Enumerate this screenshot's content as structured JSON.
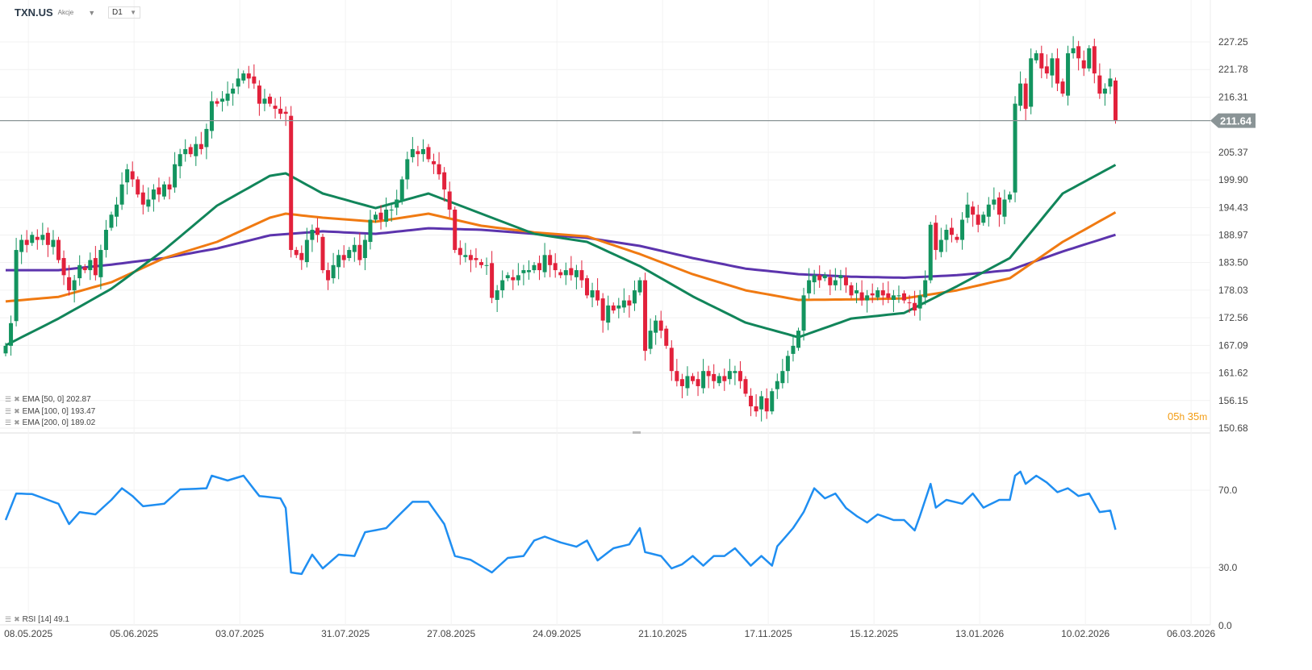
{
  "header": {
    "symbol": "TXN.US",
    "type": "Akcje",
    "timeframe": "D1"
  },
  "timer": {
    "hours": "05",
    "h": "h",
    "minutes": "35",
    "m": "m"
  },
  "legend": [
    {
      "label": "EMA [50, 0] 202.87"
    },
    {
      "label": "EMA [100, 0] 193.47"
    },
    {
      "label": "EMA [200, 0] 189.02"
    }
  ],
  "rsi_legend": "RSI [14] 49.1",
  "colors": {
    "up": "#13945f",
    "down": "#e2213b",
    "ema50": "#11855a",
    "ema100": "#f07a12",
    "ema200": "#5c34ad",
    "rsi": "#1f8ef1",
    "last": "#8a9496"
  },
  "chart_data": [
    {
      "type": "candlestick",
      "title": "TXN.US D1",
      "last_price": 211.64,
      "ylim": [
        150.68,
        227.25
      ],
      "y_ticks": [
        227.25,
        221.78,
        216.31,
        205.37,
        199.9,
        194.43,
        188.97,
        183.5,
        178.03,
        172.56,
        167.09,
        161.62,
        156.15,
        150.68
      ],
      "x_ticks": [
        {
          "label": "08.05.2025",
          "index": 4.3
        },
        {
          "label": "05.06.2025",
          "index": 24.3
        },
        {
          "label": "03.07.2025",
          "index": 44.3
        },
        {
          "label": "31.07.2025",
          "index": 64.3
        },
        {
          "label": "27.08.2025",
          "index": 84.3
        },
        {
          "label": "24.09.2025",
          "index": 104.3
        },
        {
          "label": "21.10.2025",
          "index": 124.3
        },
        {
          "label": "17.11.2025",
          "index": 144.3
        },
        {
          "label": "15.12.2025",
          "index": 164.3
        },
        {
          "label": "13.01.2026",
          "index": 184.3
        },
        {
          "label": "10.02.2026",
          "index": 204.3
        },
        {
          "label": "06.03.2026",
          "index": 224.3
        }
      ],
      "closes": [
        167,
        171.5,
        186,
        188,
        187,
        189,
        188,
        189,
        187,
        188,
        184,
        181,
        178,
        180,
        183,
        182,
        184,
        181,
        186,
        190,
        193,
        195,
        199,
        202,
        200,
        197,
        195,
        196,
        198,
        197,
        199,
        198,
        203,
        205,
        206,
        205,
        207,
        206,
        210,
        215.5,
        215,
        216,
        217,
        218,
        220,
        221,
        220,
        219,
        215,
        216,
        215,
        214,
        213,
        213,
        186,
        185,
        184,
        188,
        190,
        189,
        182,
        180,
        183,
        185,
        184,
        186,
        187,
        184,
        188,
        192,
        193,
        192,
        194,
        194,
        196,
        200,
        204,
        206,
        205,
        206,
        204,
        203,
        201,
        198,
        194,
        186,
        185,
        185,
        184,
        184,
        183,
        183,
        176.5,
        178,
        180,
        181,
        180,
        181,
        182,
        182,
        183,
        182,
        185,
        183,
        182,
        181,
        182,
        181,
        182,
        180,
        177,
        178,
        176,
        172,
        175,
        174,
        175,
        176,
        175,
        178,
        180,
        166,
        170,
        172,
        170,
        167,
        162,
        160,
        159,
        161,
        160,
        159,
        162,
        161,
        160,
        161,
        160,
        162,
        162,
        160,
        157.5,
        155,
        154,
        157,
        154,
        158,
        160,
        162,
        165,
        167,
        170,
        177,
        180,
        181,
        180,
        181,
        179,
        180,
        181,
        179,
        177,
        178,
        176,
        177,
        177,
        178,
        177,
        176.5,
        177,
        177,
        176,
        175.5,
        174,
        177,
        180,
        191,
        186,
        188,
        190,
        189,
        188,
        192,
        195,
        193,
        191,
        193,
        195,
        196,
        193,
        196,
        197,
        215,
        219,
        214,
        224,
        225,
        222,
        221,
        224,
        219,
        217,
        225,
        226,
        224,
        222,
        226,
        221,
        217,
        218,
        220,
        211.64
      ],
      "series": [
        {
          "name": "EMA [50, 0]",
          "value": 202.87,
          "knots": [
            [
              0,
              167.1
            ],
            [
              10,
              172.4
            ],
            [
              20,
              178.3
            ],
            [
              30,
              186
            ],
            [
              40,
              194.8
            ],
            [
              50,
              200.7
            ],
            [
              53,
              201.2
            ],
            [
              60,
              197.2
            ],
            [
              70,
              194.3
            ],
            [
              80,
              197.2
            ],
            [
              90,
              193.2
            ],
            [
              100,
              189.2
            ],
            [
              110,
              187.6
            ],
            [
              120,
              182.8
            ],
            [
              130,
              176.8
            ],
            [
              140,
              171.6
            ],
            [
              150,
              168.7
            ],
            [
              160,
              172.4
            ],
            [
              170,
              173.5
            ],
            [
              180,
              178.8
            ],
            [
              190,
              184.4
            ],
            [
              200,
              197.2
            ],
            [
              210,
              202.87
            ]
          ]
        },
        {
          "name": "EMA [100, 0]",
          "value": 193.47,
          "knots": [
            [
              0,
              175.8
            ],
            [
              10,
              176.7
            ],
            [
              20,
              179.6
            ],
            [
              30,
              184.4
            ],
            [
              40,
              187.6
            ],
            [
              50,
              192.4
            ],
            [
              53,
              193.2
            ],
            [
              60,
              192.4
            ],
            [
              70,
              191.6
            ],
            [
              80,
              193.2
            ],
            [
              90,
              190.8
            ],
            [
              100,
              189.5
            ],
            [
              110,
              188.7
            ],
            [
              120,
              185.2
            ],
            [
              130,
              181.2
            ],
            [
              140,
              178
            ],
            [
              150,
              176.1
            ],
            [
              160,
              176.2
            ],
            [
              170,
              176.4
            ],
            [
              180,
              178
            ],
            [
              190,
              180.4
            ],
            [
              200,
              187.6
            ],
            [
              210,
              193.47
            ]
          ]
        },
        {
          "name": "EMA [200, 0]",
          "value": 189.02,
          "knots": [
            [
              0,
              182
            ],
            [
              10,
              182
            ],
            [
              20,
              183.1
            ],
            [
              30,
              184.4
            ],
            [
              40,
              186.3
            ],
            [
              50,
              188.9
            ],
            [
              60,
              189.7
            ],
            [
              70,
              189.2
            ],
            [
              80,
              190.3
            ],
            [
              90,
              190
            ],
            [
              100,
              189.2
            ],
            [
              110,
              188.4
            ],
            [
              120,
              186.8
            ],
            [
              130,
              184.4
            ],
            [
              140,
              182.3
            ],
            [
              150,
              181.2
            ],
            [
              160,
              180.7
            ],
            [
              170,
              180.5
            ],
            [
              180,
              181
            ],
            [
              190,
              182
            ],
            [
              200,
              185.7
            ],
            [
              210,
              189.02
            ]
          ]
        }
      ]
    },
    {
      "type": "line",
      "title": "RSI [14]",
      "last_value": 49.1,
      "ylim": [
        0,
        100
      ],
      "y_ticks": [
        70.0,
        30.0,
        0.0
      ],
      "knots": [
        [
          0,
          54.6
        ],
        [
          2,
          68.3
        ],
        [
          5,
          68
        ],
        [
          10,
          63
        ],
        [
          12,
          52.5
        ],
        [
          14,
          58.7
        ],
        [
          17,
          57.5
        ],
        [
          20,
          65
        ],
        [
          22,
          71
        ],
        [
          24,
          67
        ],
        [
          26,
          61.7
        ],
        [
          30,
          63
        ],
        [
          33,
          70.4
        ],
        [
          38,
          71
        ],
        [
          39,
          77.5
        ],
        [
          42,
          75
        ],
        [
          45,
          77.5
        ],
        [
          48,
          67
        ],
        [
          52,
          65.8
        ],
        [
          53,
          60.8
        ],
        [
          54,
          27.5
        ],
        [
          56,
          26.7
        ],
        [
          58,
          36.7
        ],
        [
          60,
          29.6
        ],
        [
          63,
          36.7
        ],
        [
          66,
          36
        ],
        [
          68,
          48.3
        ],
        [
          72,
          50.4
        ],
        [
          75,
          58.7
        ],
        [
          77,
          64
        ],
        [
          80,
          64
        ],
        [
          83,
          52.5
        ],
        [
          85,
          36
        ],
        [
          88,
          34
        ],
        [
          92,
          27.5
        ],
        [
          95,
          35
        ],
        [
          98,
          36
        ],
        [
          100,
          44
        ],
        [
          102,
          46
        ],
        [
          105,
          43
        ],
        [
          108,
          40.8
        ],
        [
          110,
          44
        ],
        [
          112,
          33.7
        ],
        [
          115,
          40
        ],
        [
          118,
          42
        ],
        [
          120,
          50.4
        ],
        [
          121,
          38
        ],
        [
          124,
          36
        ],
        [
          126,
          29.6
        ],
        [
          128,
          31.7
        ],
        [
          130,
          36
        ],
        [
          132,
          31
        ],
        [
          134,
          36
        ],
        [
          136,
          36
        ],
        [
          138,
          40
        ],
        [
          140,
          34
        ],
        [
          141,
          31
        ],
        [
          143,
          36
        ],
        [
          145,
          31
        ],
        [
          146,
          41
        ],
        [
          149,
          50.4
        ],
        [
          151,
          58.7
        ],
        [
          153,
          71
        ],
        [
          155,
          65.8
        ],
        [
          157,
          68.3
        ],
        [
          159,
          60.8
        ],
        [
          161,
          56.7
        ],
        [
          163,
          53.3
        ],
        [
          165,
          57.5
        ],
        [
          168,
          54.6
        ],
        [
          170,
          54.6
        ],
        [
          172,
          49.2
        ],
        [
          173,
          56.7
        ],
        [
          175,
          73.3
        ],
        [
          176,
          61
        ],
        [
          178,
          65
        ],
        [
          181,
          63
        ],
        [
          183,
          68.3
        ],
        [
          185,
          61
        ],
        [
          188,
          65
        ],
        [
          190,
          65
        ],
        [
          191,
          77.5
        ],
        [
          192,
          79.6
        ],
        [
          193,
          73.3
        ],
        [
          195,
          77.5
        ],
        [
          197,
          74
        ],
        [
          199,
          69
        ],
        [
          201,
          71
        ],
        [
          203,
          67
        ],
        [
          205,
          68.3
        ],
        [
          207,
          58.7
        ],
        [
          209,
          59.5
        ],
        [
          210,
          49.6
        ]
      ]
    }
  ]
}
